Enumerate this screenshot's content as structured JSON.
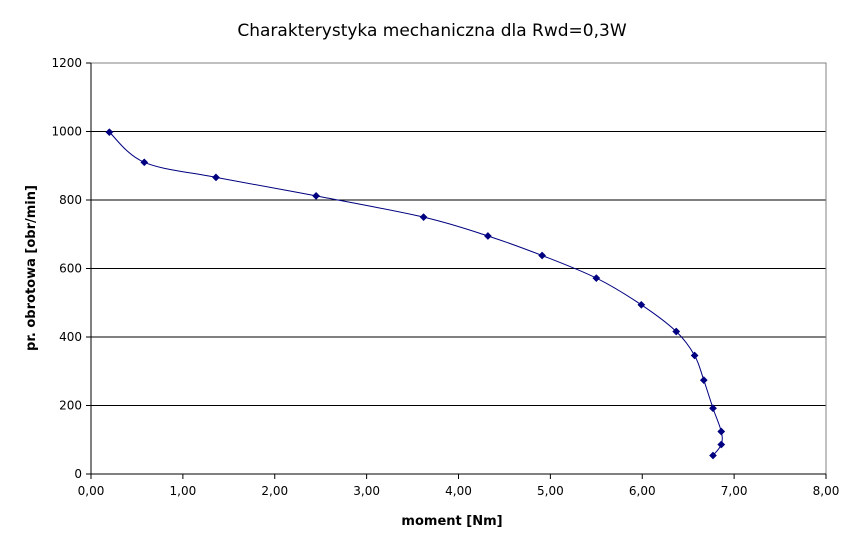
{
  "chart_data": {
    "type": "line",
    "title": "Charakterystyka mechaniczna dla Rwd=0,3W",
    "xlabel": "moment [Nm]",
    "ylabel": "pr. obrotowa [obr/min]",
    "xlim": [
      0,
      8
    ],
    "ylim": [
      0,
      1200
    ],
    "x_ticks": [
      "0,00",
      "1,00",
      "2,00",
      "3,00",
      "4,00",
      "5,00",
      "6,00",
      "7,00",
      "8,00"
    ],
    "y_ticks": [
      "0",
      "200",
      "400",
      "600",
      "800",
      "1000",
      "1200"
    ],
    "x_tick_values": [
      0,
      1,
      2,
      3,
      4,
      5,
      6,
      7,
      8
    ],
    "y_tick_values": [
      0,
      200,
      400,
      600,
      800,
      1000,
      1200
    ],
    "grid": "horizontal major gridlines",
    "legend": "none",
    "line_color": "#000080",
    "marker_color": "#000080",
    "marker": "diamond",
    "series": [
      {
        "x": [
          0.2,
          0.58,
          1.36,
          2.45,
          3.62,
          4.32,
          4.91,
          5.5,
          5.99,
          6.37,
          6.57,
          6.67,
          6.77,
          6.86,
          6.86,
          6.77
        ],
        "y": [
          998,
          910,
          866,
          812,
          750,
          695,
          638,
          572,
          494,
          416,
          346,
          274,
          192,
          124,
          86,
          54
        ]
      }
    ]
  }
}
